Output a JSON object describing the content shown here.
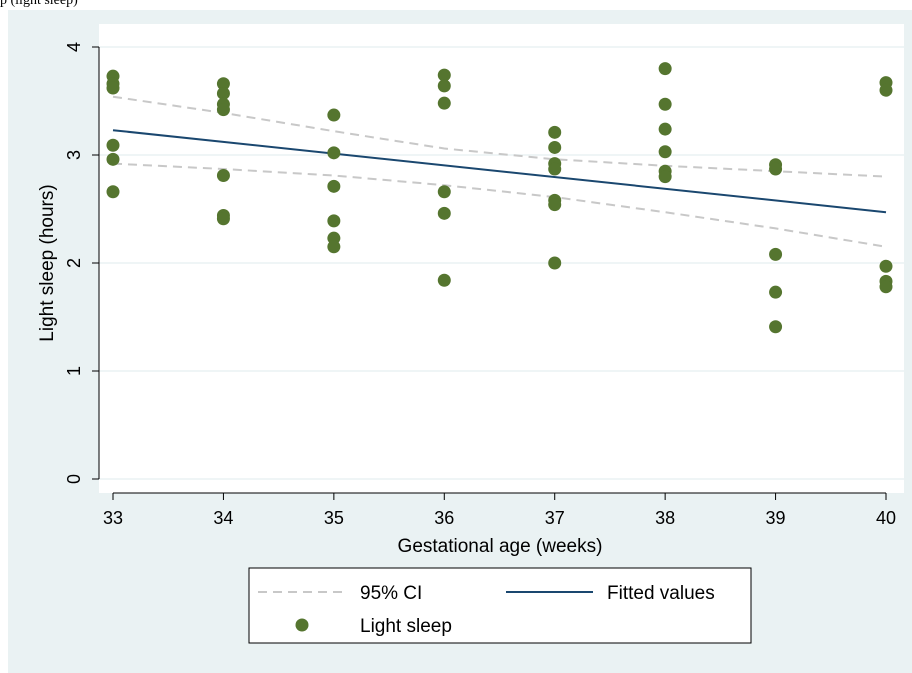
{
  "caption_fragment": "p (light sleep)",
  "chart_data": {
    "type": "scatter",
    "title": "",
    "xlabel": "Gestational age (weeks)",
    "ylabel": "Light sleep (hours)",
    "xlim": [
      33,
      40
    ],
    "ylim": [
      0,
      4
    ],
    "xticks": [
      33,
      34,
      35,
      36,
      37,
      38,
      39,
      40
    ],
    "yticks": [
      0,
      1,
      2,
      3,
      4
    ],
    "grid": "horizontal",
    "legend_position": "bottom",
    "legend": [
      {
        "label": "95% CI",
        "style": "dashed-line",
        "color": "#c8c8c8"
      },
      {
        "label": "Fitted values",
        "style": "solid-line",
        "color": "#1a476f"
      },
      {
        "label": "Light sleep",
        "style": "marker",
        "color": "#55752f"
      }
    ],
    "series": [
      {
        "name": "Light sleep",
        "kind": "scatter",
        "color": "#55752f",
        "points": [
          [
            33,
            3.73
          ],
          [
            33,
            3.66
          ],
          [
            33,
            3.62
          ],
          [
            33,
            3.09
          ],
          [
            33,
            2.96
          ],
          [
            33,
            2.66
          ],
          [
            34,
            3.66
          ],
          [
            34,
            3.57
          ],
          [
            34,
            3.47
          ],
          [
            34,
            3.42
          ],
          [
            34,
            2.81
          ],
          [
            34,
            2.44
          ],
          [
            34,
            2.41
          ],
          [
            35,
            3.37
          ],
          [
            35,
            3.02
          ],
          [
            35,
            2.71
          ],
          [
            35,
            2.39
          ],
          [
            35,
            2.23
          ],
          [
            35,
            2.15
          ],
          [
            36,
            3.74
          ],
          [
            36,
            3.64
          ],
          [
            36,
            3.48
          ],
          [
            36,
            2.66
          ],
          [
            36,
            2.46
          ],
          [
            36,
            1.84
          ],
          [
            37,
            3.21
          ],
          [
            37,
            3.07
          ],
          [
            37,
            2.92
          ],
          [
            37,
            2.87
          ],
          [
            37,
            2.58
          ],
          [
            37,
            2.54
          ],
          [
            37,
            2.0
          ],
          [
            38,
            3.8
          ],
          [
            38,
            3.47
          ],
          [
            38,
            3.24
          ],
          [
            38,
            3.03
          ],
          [
            38,
            2.85
          ],
          [
            38,
            2.8
          ],
          [
            39,
            2.91
          ],
          [
            39,
            2.87
          ],
          [
            39,
            2.08
          ],
          [
            39,
            1.73
          ],
          [
            39,
            1.41
          ],
          [
            40,
            3.67
          ],
          [
            40,
            3.6
          ],
          [
            40,
            1.97
          ],
          [
            40,
            1.83
          ],
          [
            40,
            1.78
          ]
        ]
      },
      {
        "name": "Fitted values",
        "kind": "line",
        "color": "#1a476f",
        "points": [
          [
            33,
            3.23
          ],
          [
            40,
            2.47
          ]
        ]
      },
      {
        "name": "95% CI",
        "kind": "line-dashed",
        "color": "#c8c8c8",
        "points": [
          [
            33,
            3.54
          ],
          [
            34,
            3.39
          ],
          [
            35,
            3.22
          ],
          [
            36,
            3.06
          ],
          [
            37,
            2.96
          ],
          [
            38,
            2.9
          ],
          [
            39,
            2.85
          ],
          [
            40,
            2.8
          ]
        ]
      },
      {
        "name": "95% CI",
        "kind": "line-dashed",
        "color": "#c8c8c8",
        "points": [
          [
            33,
            2.92
          ],
          [
            34,
            2.87
          ],
          [
            35,
            2.81
          ],
          [
            36,
            2.72
          ],
          [
            37,
            2.61
          ],
          [
            38,
            2.47
          ],
          [
            39,
            2.32
          ],
          [
            40,
            2.15
          ]
        ]
      }
    ]
  }
}
